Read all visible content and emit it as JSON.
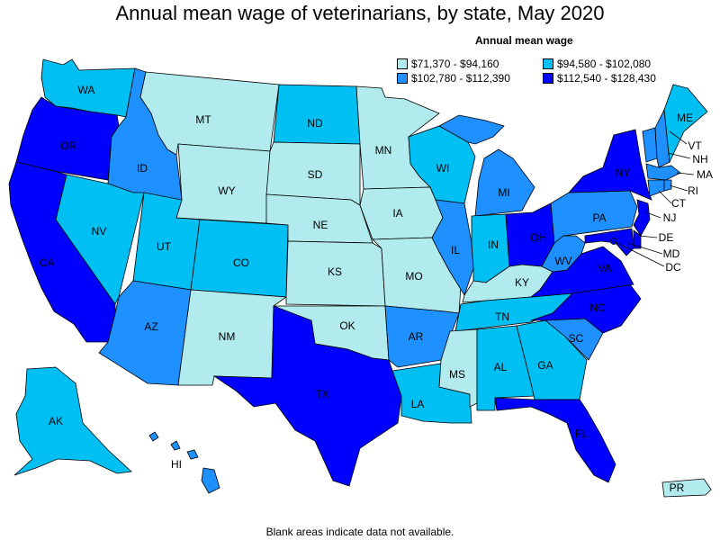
{
  "title": "Annual mean wage of veterinarians, by state, May 2020",
  "legend": {
    "title": "Annual mean wage",
    "bins": [
      {
        "label": "$71,370 - $94,160",
        "color": "#b2ebee"
      },
      {
        "label": "$94,580 - $102,080",
        "color": "#00bff3"
      },
      {
        "label": "$102,780 - $112,390",
        "color": "#1e90ff"
      },
      {
        "label": "$112,540 - $128,430",
        "color": "#0000ff"
      }
    ]
  },
  "footnote": "Blank areas indicate data not available.",
  "chart_data": {
    "type": "choropleth",
    "states": [
      {
        "code": "WA",
        "bin": 1
      },
      {
        "code": "OR",
        "bin": 3
      },
      {
        "code": "CA",
        "bin": 3
      },
      {
        "code": "ID",
        "bin": 2
      },
      {
        "code": "NV",
        "bin": 1
      },
      {
        "code": "MT",
        "bin": 0
      },
      {
        "code": "WY",
        "bin": 0
      },
      {
        "code": "UT",
        "bin": 1
      },
      {
        "code": "AZ",
        "bin": 2
      },
      {
        "code": "CO",
        "bin": 1
      },
      {
        "code": "NM",
        "bin": 0
      },
      {
        "code": "ND",
        "bin": 1
      },
      {
        "code": "SD",
        "bin": 0
      },
      {
        "code": "NE",
        "bin": 0
      },
      {
        "code": "KS",
        "bin": 0
      },
      {
        "code": "OK",
        "bin": 0
      },
      {
        "code": "TX",
        "bin": 3
      },
      {
        "code": "MN",
        "bin": 0
      },
      {
        "code": "IA",
        "bin": 0
      },
      {
        "code": "MO",
        "bin": 0
      },
      {
        "code": "AR",
        "bin": 2
      },
      {
        "code": "LA",
        "bin": 1
      },
      {
        "code": "WI",
        "bin": 1
      },
      {
        "code": "IL",
        "bin": 2
      },
      {
        "code": "MI",
        "bin": 2
      },
      {
        "code": "IN",
        "bin": 1
      },
      {
        "code": "OH",
        "bin": 3
      },
      {
        "code": "KY",
        "bin": 0
      },
      {
        "code": "TN",
        "bin": 1
      },
      {
        "code": "MS",
        "bin": 0
      },
      {
        "code": "AL",
        "bin": 1
      },
      {
        "code": "GA",
        "bin": 1
      },
      {
        "code": "FL",
        "bin": 3
      },
      {
        "code": "SC",
        "bin": 2
      },
      {
        "code": "NC",
        "bin": 3
      },
      {
        "code": "VA",
        "bin": 3
      },
      {
        "code": "WV",
        "bin": 2
      },
      {
        "code": "PA",
        "bin": 2
      },
      {
        "code": "NY",
        "bin": 3
      },
      {
        "code": "VT",
        "bin": 2
      },
      {
        "code": "NH",
        "bin": 2
      },
      {
        "code": "ME",
        "bin": 1
      },
      {
        "code": "MA",
        "bin": 2
      },
      {
        "code": "RI",
        "bin": 2
      },
      {
        "code": "CT",
        "bin": 2
      },
      {
        "code": "NJ",
        "bin": 3
      },
      {
        "code": "DE",
        "bin": 3
      },
      {
        "code": "MD",
        "bin": 3
      },
      {
        "code": "DC",
        "bin": 3
      },
      {
        "code": "AK",
        "bin": 1
      },
      {
        "code": "HI",
        "bin": 2
      },
      {
        "code": "PR",
        "bin": 0
      }
    ]
  }
}
